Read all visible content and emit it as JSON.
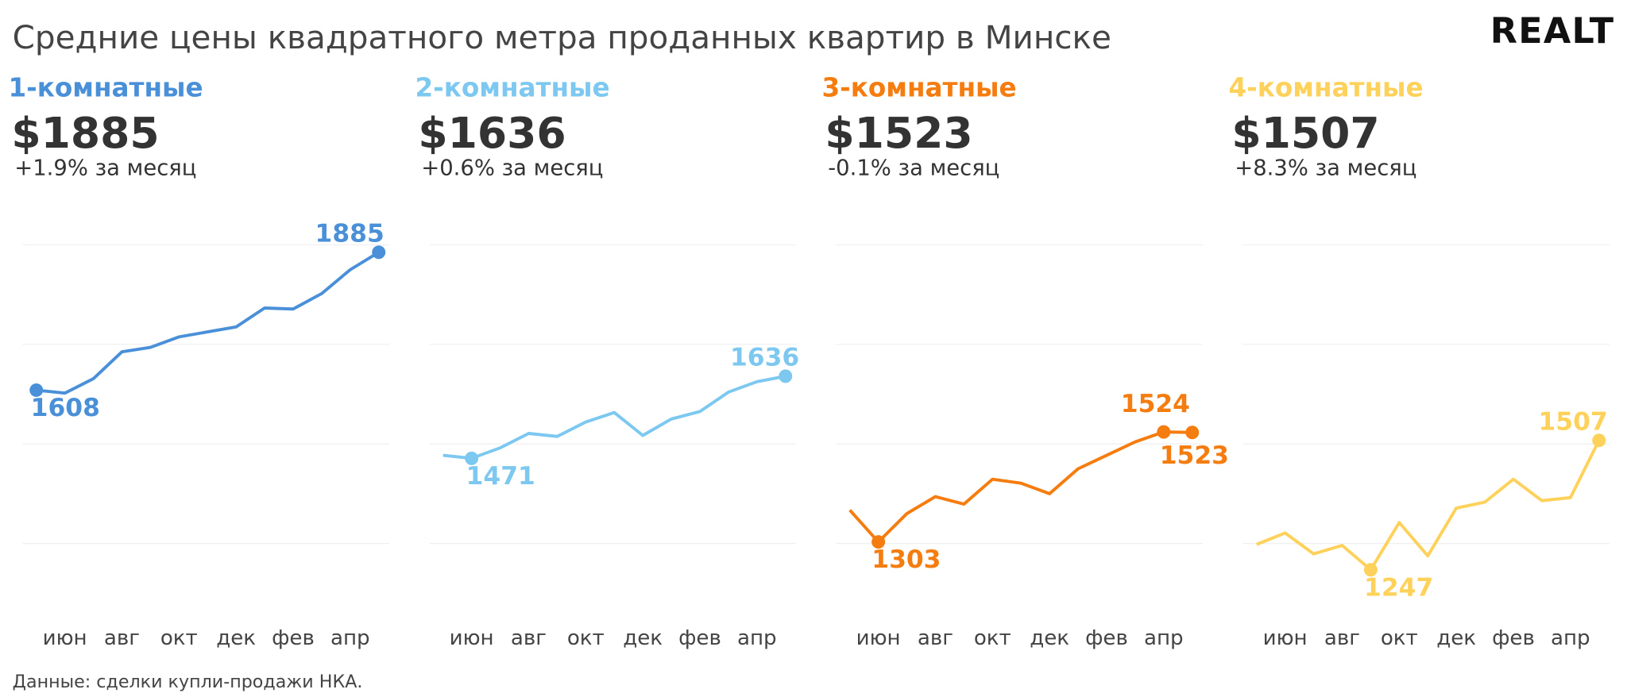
{
  "title": "Средние цены квадратного метра проданных квартир в Минске",
  "logo": "REALT",
  "source": "Данные: сделки купли-продажи НКА.",
  "chart_data": [
    {
      "type": "line",
      "title": "1-комнатные",
      "headline": "$1885",
      "change": "+1.9% за месяц",
      "color": "#4a90d9",
      "categories": [
        null,
        "июн",
        null,
        "авг",
        null,
        "окт",
        null,
        "дек",
        null,
        "фев",
        null,
        "апр",
        null
      ],
      "values": [
        1608,
        1602,
        1631,
        1685,
        1694,
        1715,
        1725,
        1735,
        1773,
        1771,
        1802,
        1850,
        1885
      ],
      "labeled_points": [
        0,
        12
      ],
      "ylim": [
        1100,
        1950
      ],
      "yticks": [
        1300,
        1500,
        1700,
        1900
      ],
      "grid": true
    },
    {
      "type": "line",
      "title": "2-комнатные",
      "headline": "$1636",
      "change": "+0.6% за месяц",
      "color": "#7cc8f0",
      "categories": [
        null,
        "июн",
        null,
        "авг",
        null,
        "окт",
        null,
        "дек",
        null,
        "фев",
        null,
        "апр",
        null
      ],
      "values": [
        1477,
        1471,
        1492,
        1521,
        1515,
        1544,
        1563,
        1517,
        1550,
        1565,
        1604,
        1625,
        1636
      ],
      "labeled_points": [
        1,
        12
      ],
      "ylim": [
        1100,
        1950
      ],
      "yticks": [
        1300,
        1500,
        1700,
        1900
      ],
      "grid": true
    },
    {
      "type": "line",
      "title": "3-комнатные",
      "headline": "$1523",
      "change": "-0.1% за месяц",
      "color": "#f57c0f",
      "categories": [
        null,
        "июн",
        null,
        "авг",
        null,
        "окт",
        null,
        "дек",
        null,
        "фев",
        null,
        "апр",
        null
      ],
      "values": [
        1367,
        1303,
        1360,
        1394,
        1379,
        1429,
        1421,
        1400,
        1450,
        1477,
        1504,
        1524,
        1523
      ],
      "labeled_points": [
        1,
        11,
        12
      ],
      "ylim": [
        1100,
        1950
      ],
      "yticks": [
        1300,
        1500,
        1700,
        1900
      ],
      "grid": true
    },
    {
      "type": "line",
      "title": "4-комнатные",
      "headline": "$1507",
      "change": "+8.3% за месяц",
      "color": "#fdd15a",
      "categories": [
        null,
        "июн",
        null,
        "авг",
        null,
        "окт",
        null,
        "дек",
        null,
        "фев",
        null,
        "апр",
        null
      ],
      "values": [
        1298,
        1321,
        1279,
        1296,
        1247,
        1342,
        1275,
        1371,
        1383,
        1429,
        1386,
        1392,
        1507
      ],
      "labeled_points": [
        4,
        12
      ],
      "ylim": [
        1100,
        1950
      ],
      "yticks": [
        1300,
        1500,
        1700,
        1900
      ],
      "grid": true
    }
  ]
}
